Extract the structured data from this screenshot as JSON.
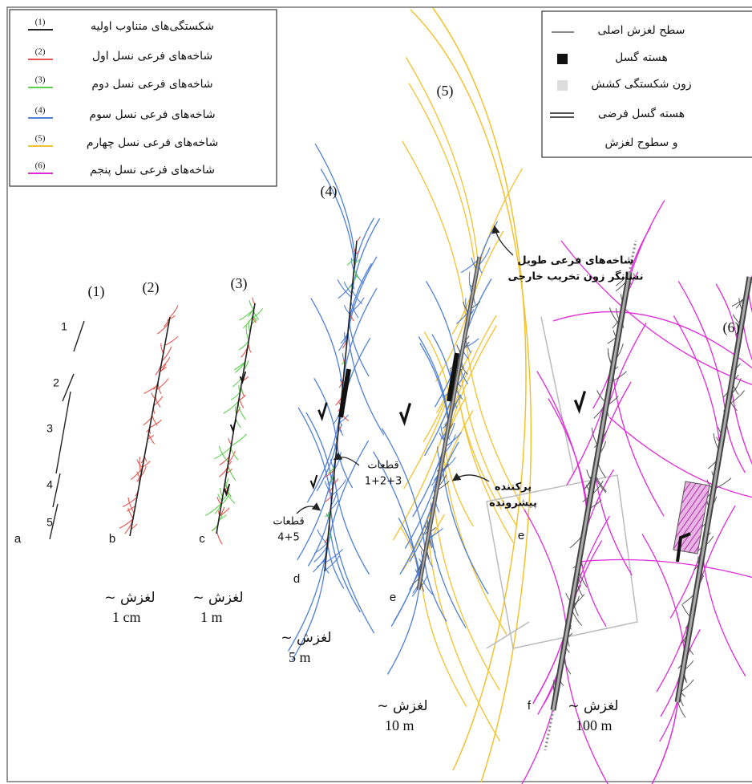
{
  "legend_generations": {
    "items": [
      {
        "number": "(1)",
        "label": "شکستگی‌های متناوب اولیه",
        "color": "#222222"
      },
      {
        "number": "(2)",
        "label": "شاخه‌های فرعی نسل اول",
        "color": "#e8554e"
      },
      {
        "number": "(3)",
        "label": "شاخه‌های فرعی نسل دوم",
        "color": "#5ecf4f"
      },
      {
        "number": "(4)",
        "label": "شاخه‌های فرعی نسل سوم",
        "color": "#4f7fd6"
      },
      {
        "number": "(5)",
        "label": "شاخه‌های فرعی نسل چهارم",
        "color": "#f2c230"
      },
      {
        "number": "(6)",
        "label": "شاخه‌های فرعی نسل پنجم",
        "color": "#e02ad8"
      }
    ]
  },
  "legend_fault": {
    "items": [
      {
        "label": "سطح لغزش اصلی"
      },
      {
        "label": "هسته گسل"
      },
      {
        "label": "زون شکستگی کشش"
      },
      {
        "label": "هسته گسل فرضی"
      },
      {
        "label": "و سطوح لغزش"
      }
    ]
  },
  "panels": [
    {
      "stage": "(1)",
      "letter": "a"
    },
    {
      "stage": "(2)",
      "letter": "b",
      "slip_label": "لغزش ~",
      "slip": "1 cm"
    },
    {
      "stage": "(3)",
      "letter": "c",
      "slip_label": "لغزش ~",
      "slip": "1 m"
    },
    {
      "stage": "(4)",
      "letter": "d",
      "slip_label": "لغزش ~",
      "slip": "5 m"
    },
    {
      "stage": "(5)",
      "letter": "e",
      "slip_label": "لغزش ~",
      "slip": "10 m"
    },
    {
      "stage": "(6)",
      "letter": "f",
      "slip_label": "لغزش ~",
      "slip": "100 m"
    }
  ],
  "inset_letter": "e",
  "segments": [
    "1",
    "2",
    "3",
    "4",
    "5"
  ],
  "annotations": [
    {
      "lines": [
        "قطعات",
        "1+2+3"
      ]
    },
    {
      "lines": [
        "قطعات",
        "4+5"
      ]
    },
    {
      "lines": [
        "شاخه‌های فرعی طویل",
        "نشانگر زون تخریب خارجی"
      ]
    },
    {
      "lines": [
        "پرکننده",
        "پیشرونده"
      ]
    }
  ]
}
